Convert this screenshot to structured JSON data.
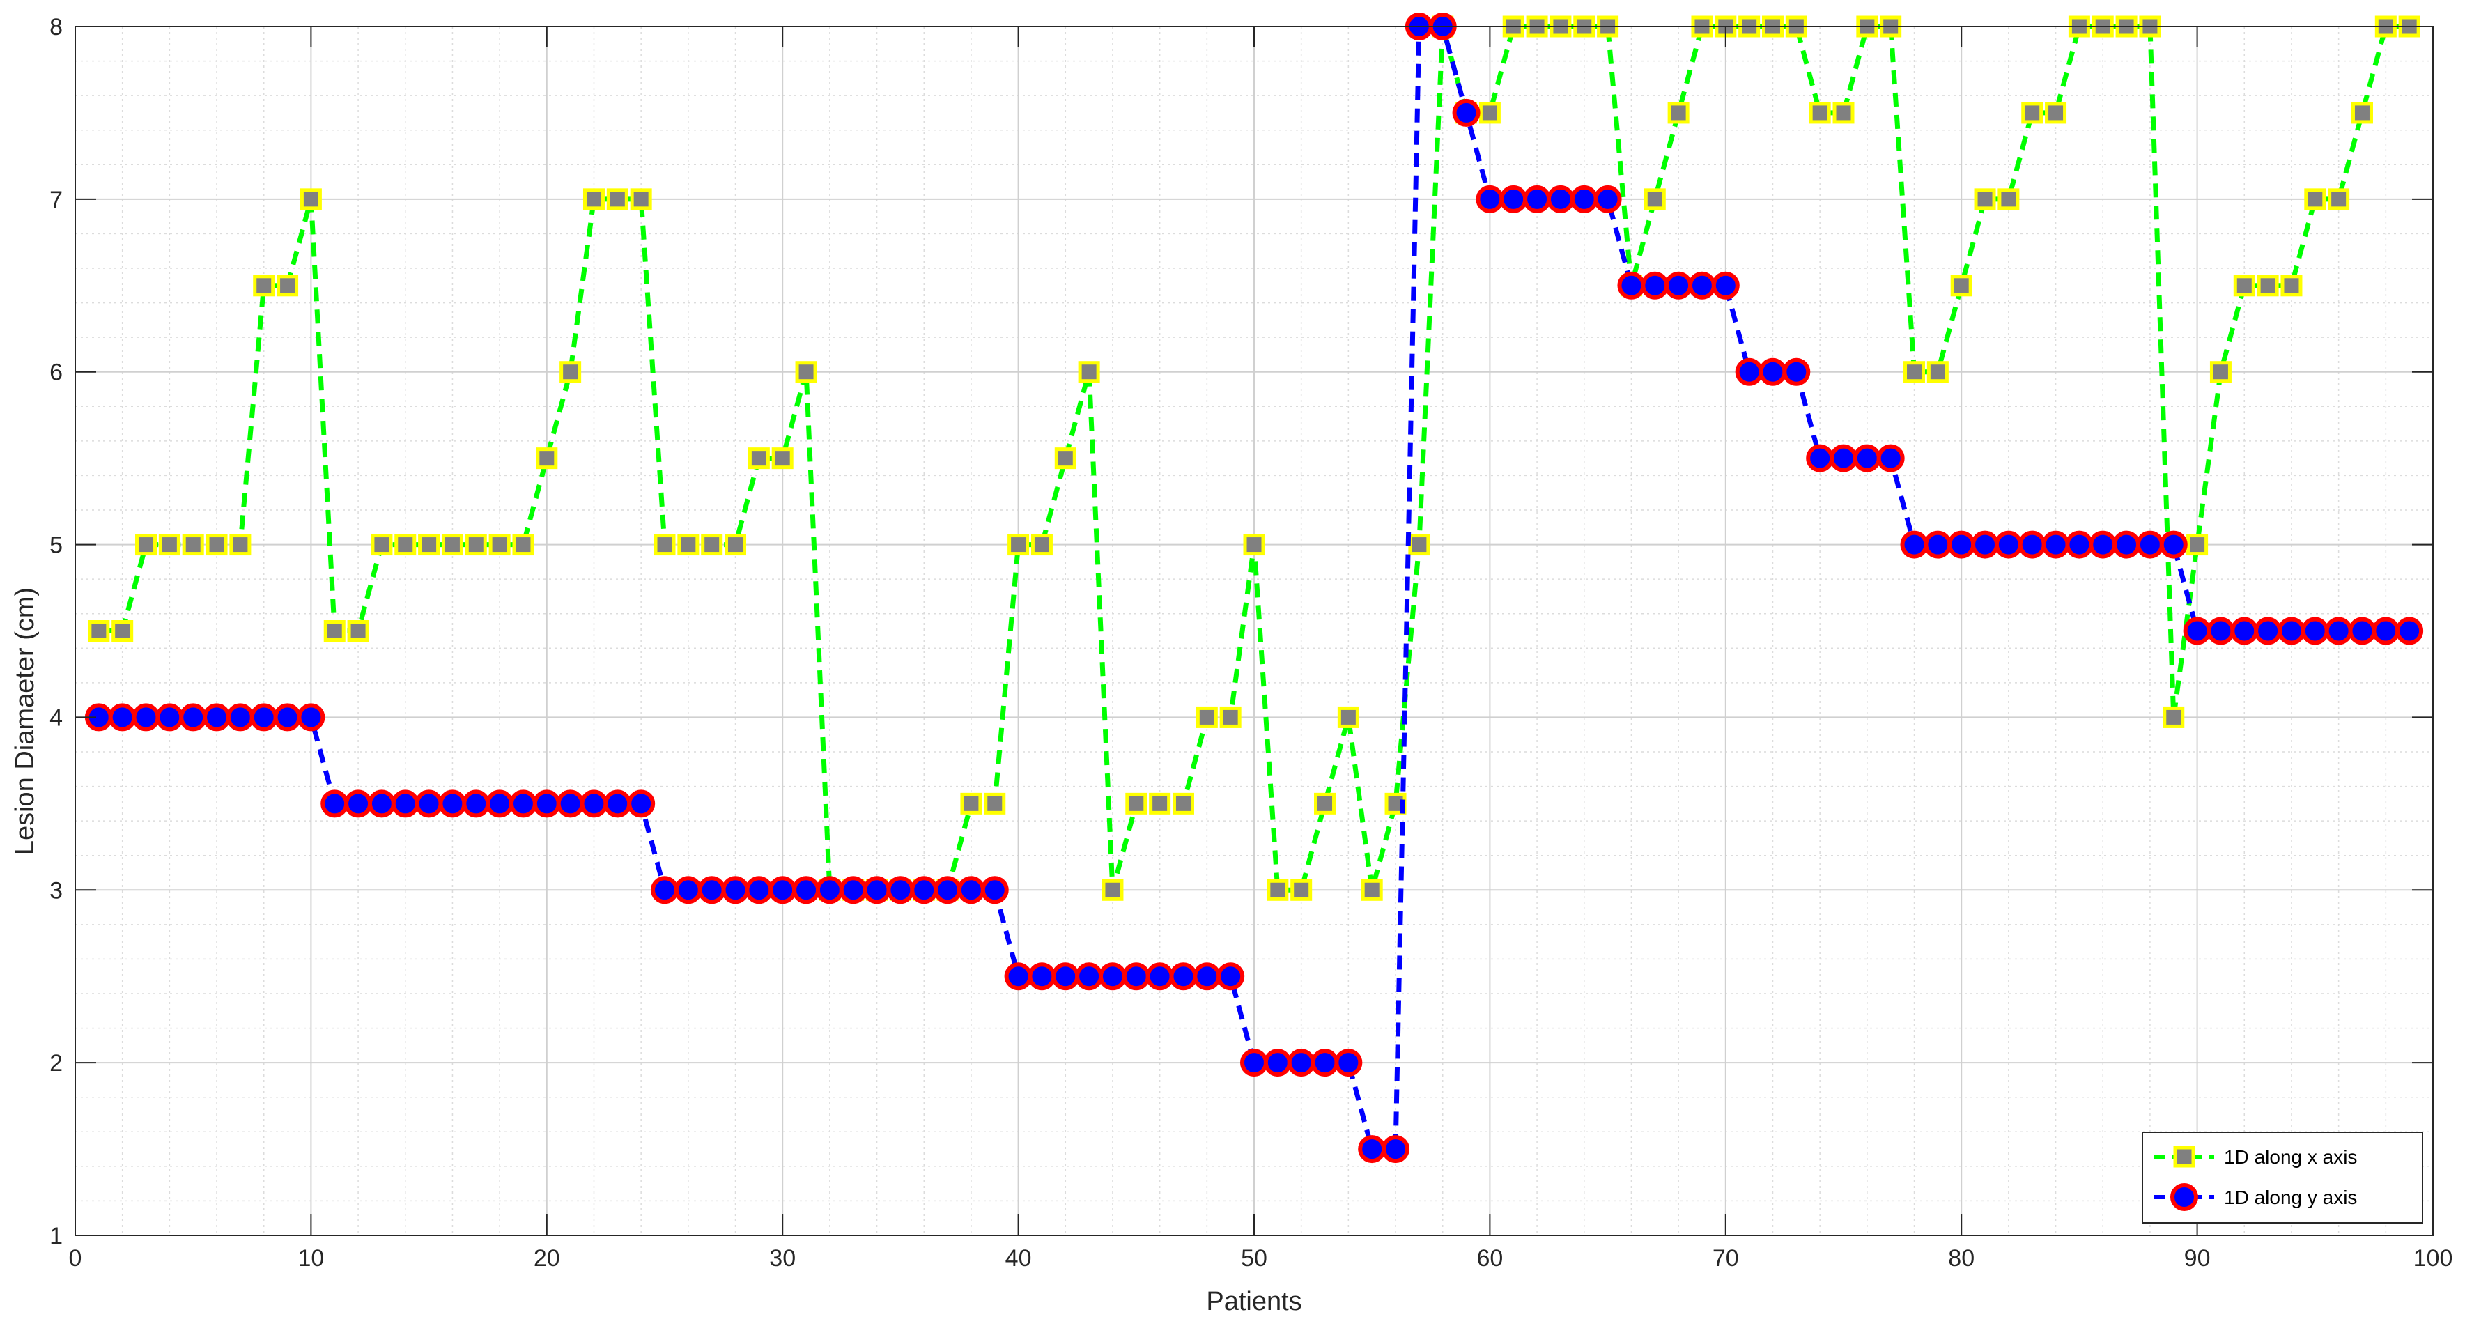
{
  "chart_data": {
    "type": "line",
    "title": "",
    "xlabel": "Patients",
    "ylabel": "Lesion Diamaeter (cm)",
    "xlim": [
      0,
      100
    ],
    "ylim": [
      1,
      8
    ],
    "xticks": [
      0,
      10,
      20,
      30,
      40,
      50,
      60,
      70,
      80,
      90,
      100
    ],
    "yticks": [
      1,
      2,
      3,
      4,
      5,
      6,
      7,
      8
    ],
    "grid": true,
    "minor_grid": true,
    "legend_position": "bottom-right",
    "x": [
      1,
      2,
      3,
      4,
      5,
      6,
      7,
      8,
      9,
      10,
      11,
      12,
      13,
      14,
      15,
      16,
      17,
      18,
      19,
      20,
      21,
      22,
      23,
      24,
      25,
      26,
      27,
      28,
      29,
      30,
      31,
      32,
      33,
      34,
      35,
      36,
      37,
      38,
      39,
      40,
      41,
      42,
      43,
      44,
      45,
      46,
      47,
      48,
      49,
      50,
      51,
      52,
      53,
      54,
      55,
      56,
      57,
      58,
      59,
      60,
      61,
      62,
      63,
      64,
      65,
      66,
      67,
      68,
      69,
      70,
      71,
      72,
      73,
      74,
      75,
      76,
      77,
      78,
      79,
      80,
      81,
      82,
      83,
      84,
      85,
      86,
      87,
      88,
      89,
      90,
      91,
      92,
      93,
      94,
      95,
      96,
      97,
      98,
      99
    ],
    "series": [
      {
        "name": "1D along x axis",
        "color": "#00ff00",
        "marker": "square",
        "marker_face": "#808080",
        "marker_edge": "#ffff00",
        "values": [
          4.5,
          4.5,
          5,
          5,
          5,
          5,
          5,
          6.5,
          6.5,
          7,
          4.5,
          4.5,
          5,
          5,
          5,
          5,
          5,
          5,
          5,
          5.5,
          6,
          7,
          7,
          7,
          5,
          5,
          5,
          5,
          5.5,
          5.5,
          6,
          3,
          3,
          3,
          3,
          3,
          3,
          3.5,
          3.5,
          5,
          5,
          5.5,
          6,
          3,
          3.5,
          3.5,
          3.5,
          4,
          4,
          5,
          3,
          3,
          3.5,
          4,
          3,
          3.5,
          5,
          8,
          7.5,
          7.5,
          8,
          8,
          8,
          8,
          8,
          6.5,
          7,
          7.5,
          8,
          8,
          8,
          8,
          8,
          7.5,
          7.5,
          8,
          8,
          6,
          6,
          6.5,
          7,
          7,
          7.5,
          7.5,
          8,
          8,
          8,
          8,
          4,
          5,
          6,
          6.5,
          6.5,
          6.5,
          7,
          7,
          7.5,
          8,
          8
        ]
      },
      {
        "name": "1D along y axis",
        "color": "#0000ff",
        "marker": "circle",
        "marker_face": "#0000ff",
        "marker_edge": "#ff0000",
        "values": [
          4,
          4,
          4,
          4,
          4,
          4,
          4,
          4,
          4,
          4,
          3.5,
          3.5,
          3.5,
          3.5,
          3.5,
          3.5,
          3.5,
          3.5,
          3.5,
          3.5,
          3.5,
          3.5,
          3.5,
          3.5,
          3,
          3,
          3,
          3,
          3,
          3,
          3,
          3,
          3,
          3,
          3,
          3,
          3,
          3,
          3,
          2.5,
          2.5,
          2.5,
          2.5,
          2.5,
          2.5,
          2.5,
          2.5,
          2.5,
          2.5,
          2,
          2,
          2,
          2,
          2,
          1.5,
          1.5,
          8,
          8,
          7.5,
          7,
          7,
          7,
          7,
          7,
          7,
          6.5,
          6.5,
          6.5,
          6.5,
          6.5,
          6,
          6,
          6,
          5.5,
          5.5,
          5.5,
          5.5,
          5,
          5,
          5,
          5,
          5,
          5,
          5,
          5,
          5,
          5,
          5,
          5,
          4.5,
          4.5,
          4.5,
          4.5,
          4.5,
          4.5,
          4.5,
          4.5,
          4.5,
          4.5
        ]
      }
    ]
  }
}
